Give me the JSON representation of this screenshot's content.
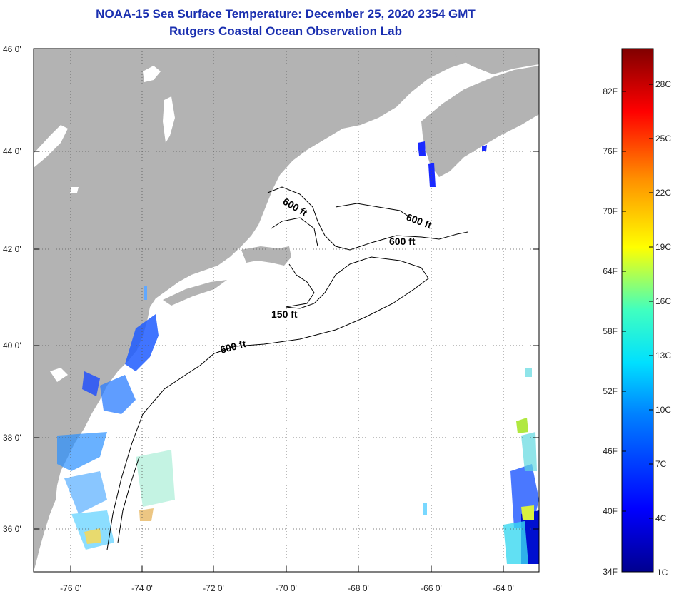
{
  "title": "NOAA-15 Sea Surface Temperature:  December 25, 2020 2354 GMT",
  "subtitle": "Rutgers Coastal Ocean Observation Lab",
  "map": {
    "lat_labels": [
      "46 0'",
      "44 0'",
      "42 0'",
      "40 0'",
      "38 0'",
      "36 0'"
    ],
    "lon_labels": [
      "-76 0'",
      "-74 0'",
      "-72 0'",
      "-70 0'",
      "-68 0'",
      "-66 0'",
      "-64 0'"
    ],
    "contour_labels": [
      "600 ft",
      "600 ft",
      "600 ft",
      "150 ft",
      "600 ft"
    ]
  },
  "colorbar": {
    "fahrenheit_labels": [
      "82F",
      "76F",
      "70F",
      "64F",
      "58F",
      "52F",
      "46F",
      "40F",
      "34F"
    ],
    "celsius_labels": [
      "28C",
      "25C",
      "22C",
      "19C",
      "16C",
      "13C",
      "10C",
      "7C",
      "4C",
      "1C"
    ]
  },
  "colors": {
    "land": "#b3b3b3",
    "ocean": "#ffffff",
    "title": "#1a2fb0",
    "grid": "#555555"
  }
}
